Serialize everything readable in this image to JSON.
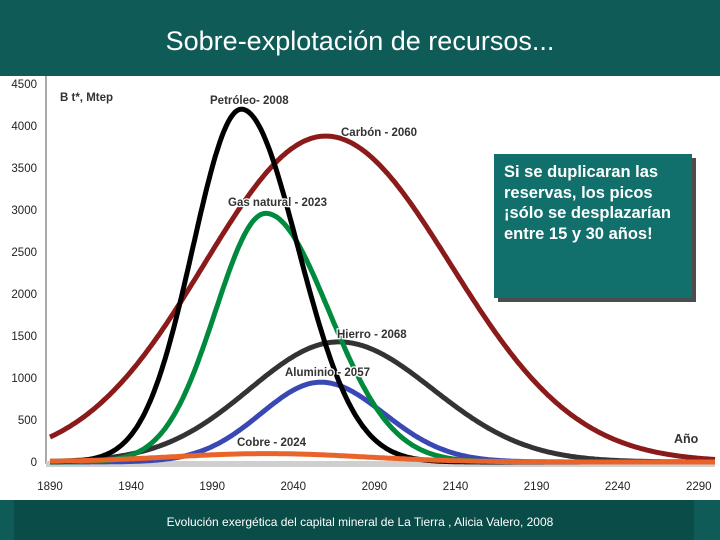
{
  "slide": {
    "title": "Sobre-explotación de recursos...",
    "footer": "Evolución exergética del capital mineral de La Tierra ,  Alicia Valero, 2008",
    "callout": "Si se duplicaran las reservas, los picos ¡sólo se desplazarían entre 15 y 30 años!"
  },
  "chart_data": {
    "type": "line",
    "ylabel": "B t*, Mtep",
    "xlabel": "Año",
    "xlim": [
      1890,
      2300
    ],
    "ylim": [
      0,
      4500
    ],
    "x_ticks": [
      1890,
      1940,
      1990,
      2040,
      2090,
      2140,
      2190,
      2240,
      2290
    ],
    "y_ticks": [
      0,
      500,
      1000,
      1500,
      2000,
      2500,
      3000,
      3500,
      4000,
      4500
    ],
    "series": [
      {
        "name": "Petróleo",
        "label": "Petróleo- 2008",
        "color": "#000000",
        "peak_year": 2008,
        "peak": 4200,
        "sigma_left": 30,
        "sigma_right": 35
      },
      {
        "name": "Carbón",
        "label": "Carbón - 2060",
        "color": "#8b1a1a",
        "peak_year": 2060,
        "peak": 3880,
        "sigma_left": 75,
        "sigma_right": 77
      },
      {
        "name": "Gas natural",
        "label": "Gas natural - 2023",
        "color": "#008a3e",
        "peak_year": 2023,
        "peak": 2960,
        "sigma_left": 31,
        "sigma_right": 39
      },
      {
        "name": "Hierro",
        "label": "Hierro - 2068",
        "color": "#333333",
        "peak_year": 2068,
        "peak": 1430,
        "sigma_left": 55,
        "sigma_right": 58
      },
      {
        "name": "Aluminio",
        "label": "Aluminio - 2057",
        "color": "#3a48b4",
        "peak_year": 2057,
        "peak": 950,
        "sigma_left": 37,
        "sigma_right": 39
      },
      {
        "name": "Cobre",
        "label": "Cobre - 2024",
        "color": "#e8642a",
        "peak_year": 2024,
        "peak": 100,
        "sigma_left": 60,
        "sigma_right": 60
      }
    ]
  }
}
